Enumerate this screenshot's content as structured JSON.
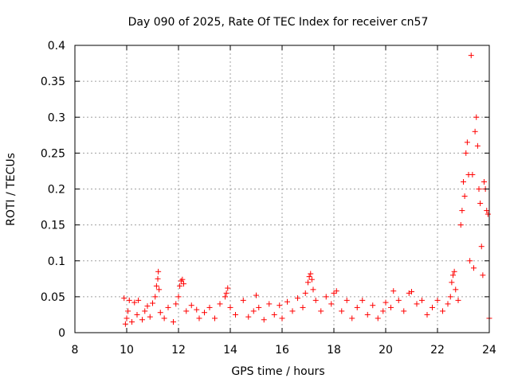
{
  "chart_data": {
    "type": "scatter",
    "title": "Day 090 of 2025, Rate Of TEC Index for receiver cn57",
    "xlabel": "GPS time / hours",
    "ylabel": "ROTI / TECUs",
    "xlim": [
      8,
      24
    ],
    "ylim": [
      0,
      0.4
    ],
    "xticks": [
      8,
      10,
      12,
      14,
      16,
      18,
      20,
      22,
      24
    ],
    "yticks": [
      0,
      0.05,
      0.1,
      0.15,
      0.2,
      0.25,
      0.3,
      0.35,
      0.4
    ],
    "xtick_labels": [
      "8",
      "10",
      "12",
      "14",
      "16",
      "18",
      "20",
      "22",
      "24"
    ],
    "ytick_labels": [
      "0",
      "0.05",
      "0.1",
      "0.15",
      "0.2",
      "0.25",
      "0.3",
      "0.35",
      "0.4"
    ],
    "grid": true,
    "marker": "+",
    "color": "#ff0000",
    "series": [
      {
        "name": "ROTI",
        "points": [
          [
            9.9,
            0.048
          ],
          [
            9.95,
            0.012
          ],
          [
            10.0,
            0.02
          ],
          [
            10.05,
            0.03
          ],
          [
            10.1,
            0.045
          ],
          [
            10.2,
            0.015
          ],
          [
            10.3,
            0.042
          ],
          [
            10.4,
            0.025
          ],
          [
            10.45,
            0.045
          ],
          [
            10.6,
            0.018
          ],
          [
            10.7,
            0.03
          ],
          [
            10.8,
            0.037
          ],
          [
            10.9,
            0.022
          ],
          [
            11.0,
            0.041
          ],
          [
            11.1,
            0.05
          ],
          [
            11.15,
            0.065
          ],
          [
            11.2,
            0.075
          ],
          [
            11.22,
            0.085
          ],
          [
            11.25,
            0.06
          ],
          [
            11.3,
            0.028
          ],
          [
            11.45,
            0.02
          ],
          [
            11.6,
            0.035
          ],
          [
            11.8,
            0.015
          ],
          [
            11.9,
            0.04
          ],
          [
            12.0,
            0.05
          ],
          [
            12.05,
            0.065
          ],
          [
            12.1,
            0.072
          ],
          [
            12.15,
            0.074
          ],
          [
            12.2,
            0.068
          ],
          [
            12.3,
            0.03
          ],
          [
            12.5,
            0.038
          ],
          [
            12.7,
            0.032
          ],
          [
            12.8,
            0.02
          ],
          [
            13.0,
            0.028
          ],
          [
            13.2,
            0.035
          ],
          [
            13.4,
            0.02
          ],
          [
            13.6,
            0.04
          ],
          [
            13.8,
            0.05
          ],
          [
            13.85,
            0.055
          ],
          [
            13.9,
            0.062
          ],
          [
            14.0,
            0.035
          ],
          [
            14.2,
            0.025
          ],
          [
            14.5,
            0.045
          ],
          [
            14.7,
            0.022
          ],
          [
            14.9,
            0.03
          ],
          [
            15.0,
            0.052
          ],
          [
            15.1,
            0.035
          ],
          [
            15.3,
            0.018
          ],
          [
            15.5,
            0.04
          ],
          [
            15.7,
            0.025
          ],
          [
            15.9,
            0.038
          ],
          [
            16.0,
            0.02
          ],
          [
            16.2,
            0.043
          ],
          [
            16.4,
            0.03
          ],
          [
            16.6,
            0.048
          ],
          [
            16.8,
            0.035
          ],
          [
            16.9,
            0.055
          ],
          [
            17.0,
            0.07
          ],
          [
            17.05,
            0.078
          ],
          [
            17.1,
            0.082
          ],
          [
            17.15,
            0.074
          ],
          [
            17.2,
            0.06
          ],
          [
            17.3,
            0.045
          ],
          [
            17.5,
            0.03
          ],
          [
            17.7,
            0.05
          ],
          [
            17.9,
            0.04
          ],
          [
            18.0,
            0.055
          ],
          [
            18.1,
            0.058
          ],
          [
            18.3,
            0.03
          ],
          [
            18.5,
            0.045
          ],
          [
            18.7,
            0.02
          ],
          [
            18.9,
            0.035
          ],
          [
            19.1,
            0.045
          ],
          [
            19.3,
            0.025
          ],
          [
            19.5,
            0.038
          ],
          [
            19.7,
            0.02
          ],
          [
            19.9,
            0.03
          ],
          [
            20.0,
            0.042
          ],
          [
            20.2,
            0.035
          ],
          [
            20.3,
            0.058
          ],
          [
            20.5,
            0.045
          ],
          [
            20.7,
            0.03
          ],
          [
            20.9,
            0.055
          ],
          [
            21.0,
            0.057
          ],
          [
            21.2,
            0.04
          ],
          [
            21.4,
            0.045
          ],
          [
            21.6,
            0.025
          ],
          [
            21.8,
            0.035
          ],
          [
            22.0,
            0.045
          ],
          [
            22.2,
            0.03
          ],
          [
            22.4,
            0.04
          ],
          [
            22.5,
            0.05
          ],
          [
            22.55,
            0.07
          ],
          [
            22.6,
            0.08
          ],
          [
            22.65,
            0.085
          ],
          [
            22.7,
            0.06
          ],
          [
            22.8,
            0.045
          ],
          [
            22.9,
            0.15
          ],
          [
            22.95,
            0.17
          ],
          [
            23.0,
            0.21
          ],
          [
            23.05,
            0.19
          ],
          [
            23.1,
            0.25
          ],
          [
            23.15,
            0.265
          ],
          [
            23.2,
            0.22
          ],
          [
            23.25,
            0.1
          ],
          [
            23.3,
            0.386
          ],
          [
            23.35,
            0.22
          ],
          [
            23.4,
            0.09
          ],
          [
            23.45,
            0.28
          ],
          [
            23.5,
            0.3
          ],
          [
            23.55,
            0.26
          ],
          [
            23.6,
            0.2
          ],
          [
            23.65,
            0.18
          ],
          [
            23.7,
            0.12
          ],
          [
            23.75,
            0.08
          ],
          [
            23.8,
            0.21
          ],
          [
            23.85,
            0.2
          ],
          [
            23.9,
            0.17
          ],
          [
            23.95,
            0.165
          ],
          [
            24.0,
            0.02
          ]
        ]
      }
    ]
  }
}
